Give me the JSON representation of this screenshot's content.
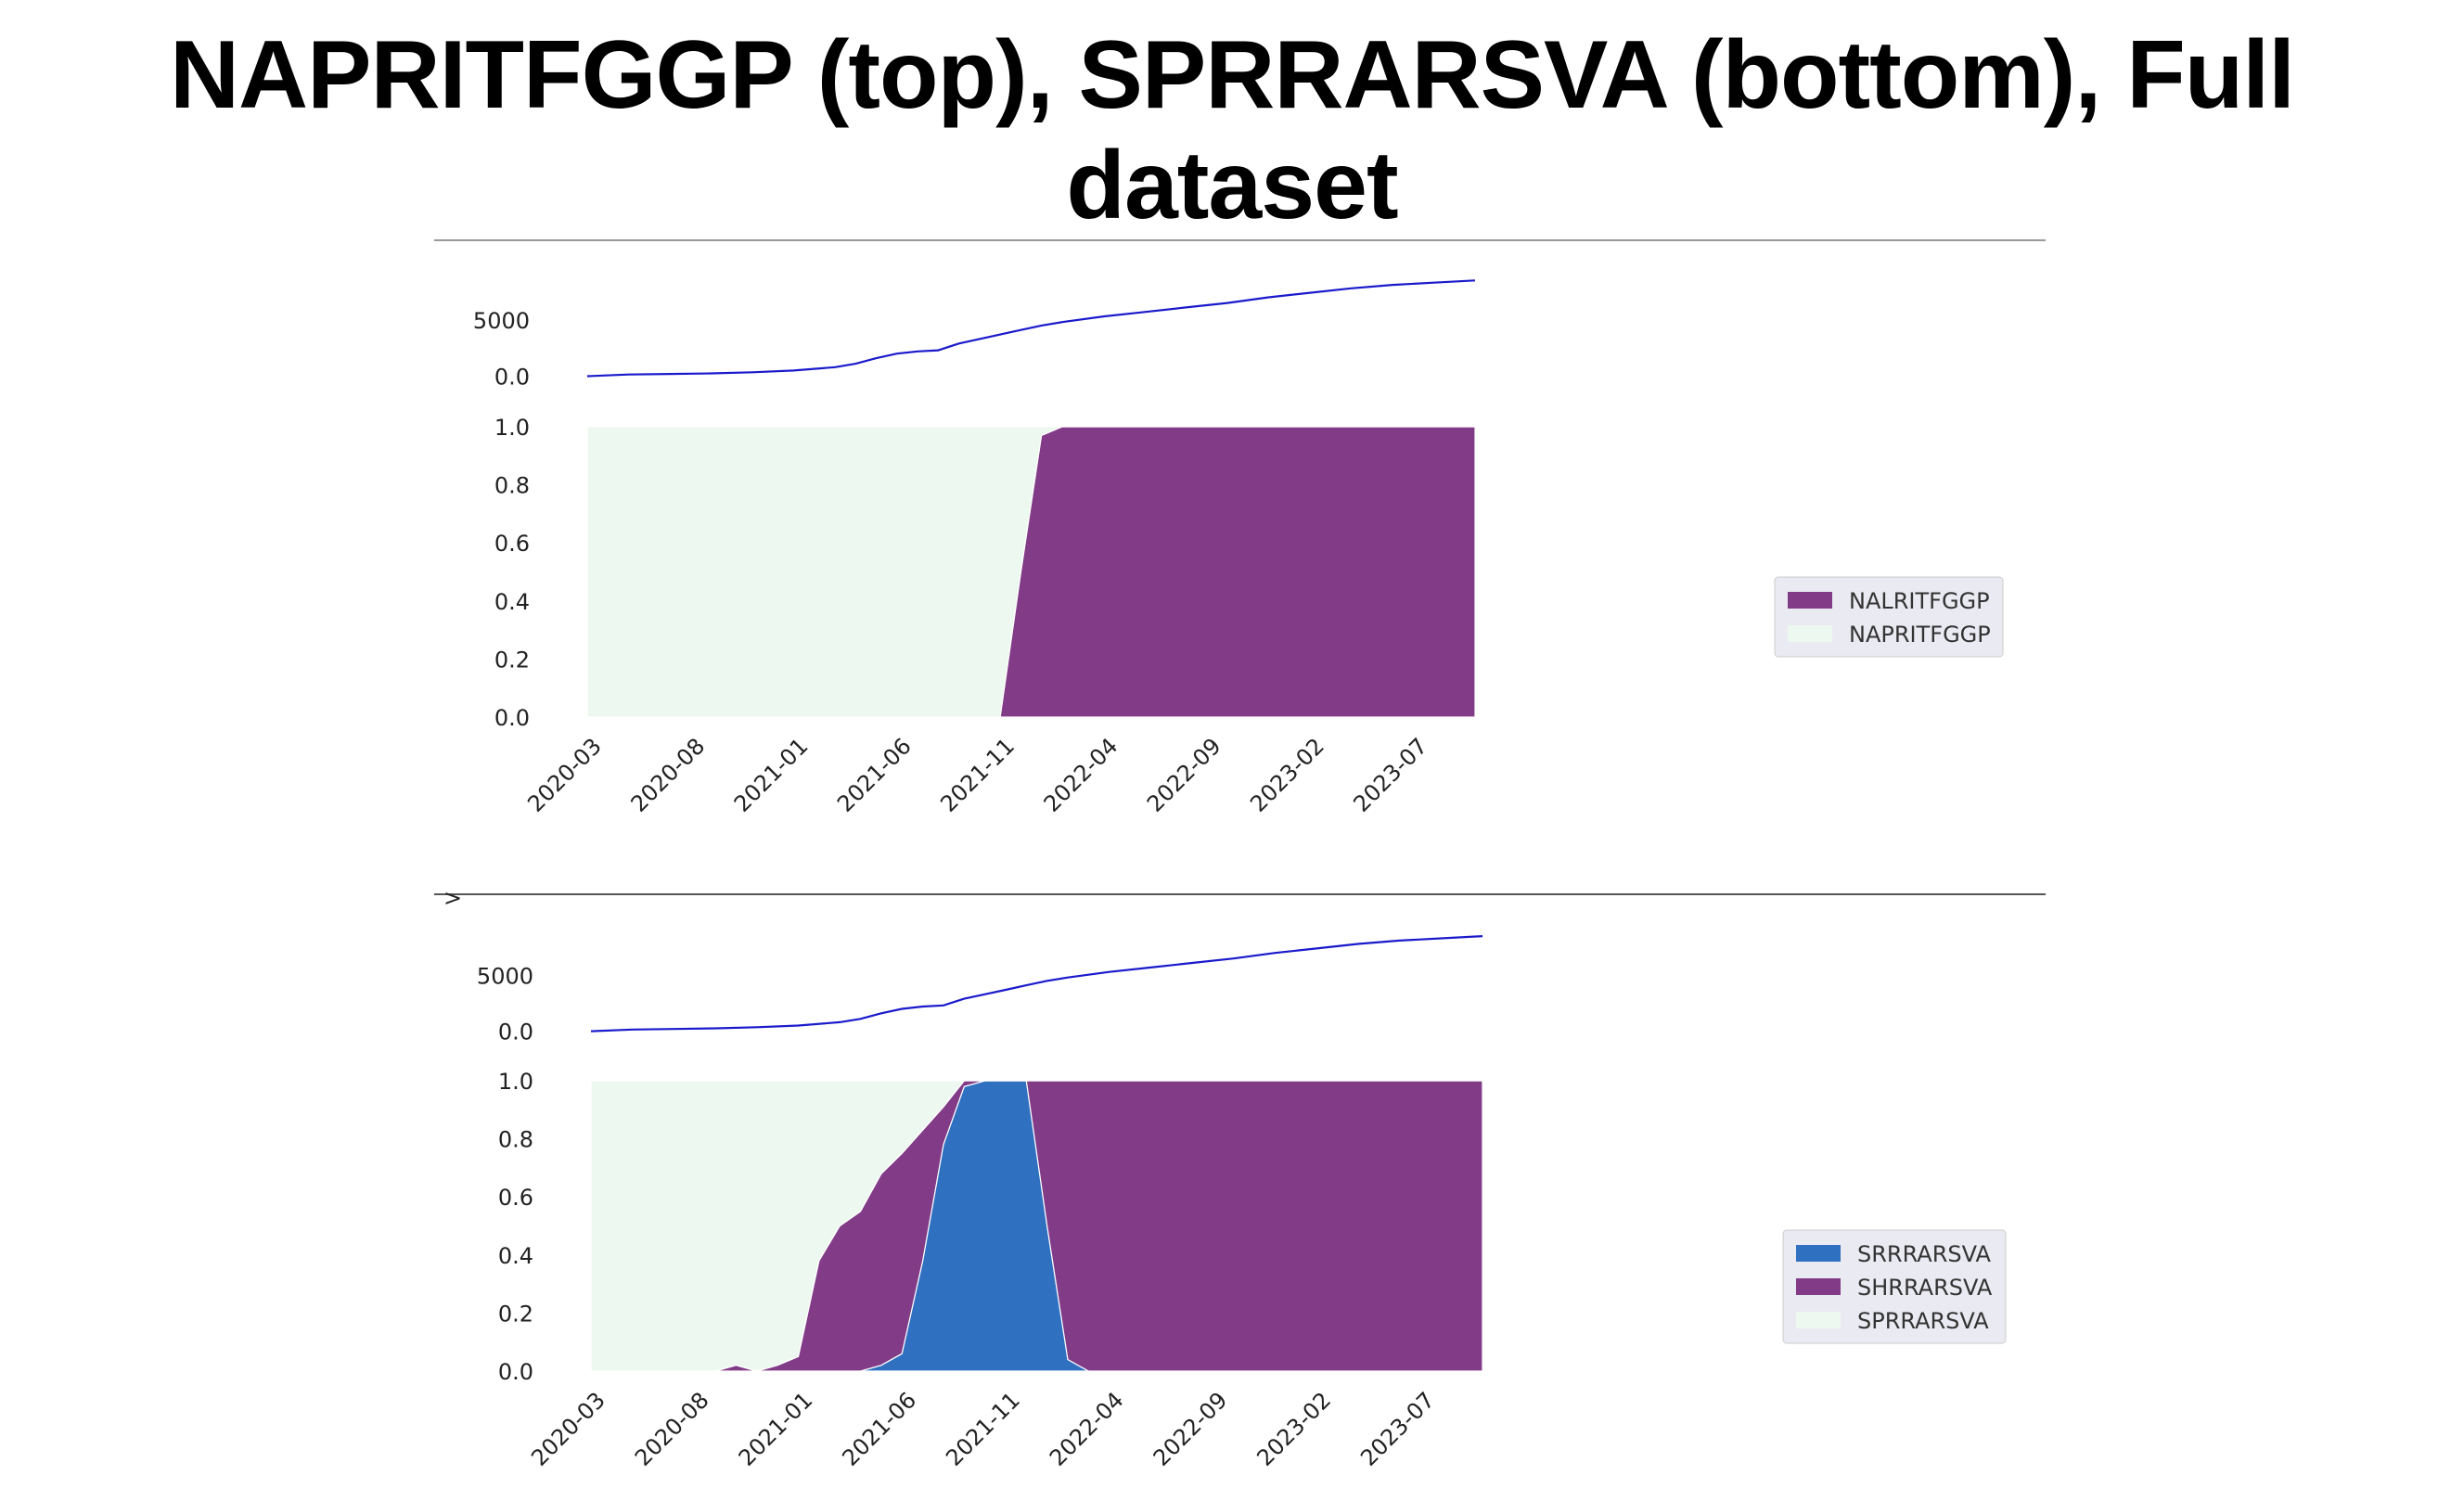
{
  "title": "NAPRITFGGP (top), SPRRARSVA (bottom), Full dataset",
  "colors": {
    "line": "#1a1acc",
    "light_green": "#edf8f0",
    "purple": "#813b87",
    "blue": "#3070c0"
  },
  "x_tick_labels": [
    "2020-03",
    "2020-08",
    "2021-01",
    "2021-06",
    "2021-11",
    "2022-04",
    "2022-09",
    "2023-02",
    "2023-07"
  ],
  "bottom_panel_marker": ">",
  "chart_data": [
    {
      "type": "line",
      "panel": "top",
      "x": [
        "2020-03",
        "2020-05",
        "2020-07",
        "2020-09",
        "2020-11",
        "2021-01",
        "2021-03",
        "2021-04",
        "2021-05",
        "2021-06",
        "2021-07",
        "2021-08",
        "2021-09",
        "2021-10",
        "2021-11",
        "2021-12",
        "2022-01",
        "2022-02",
        "2022-04",
        "2022-06",
        "2022-08",
        "2022-10",
        "2022-12",
        "2023-02",
        "2023-04",
        "2023-06",
        "2023-08",
        "2023-10"
      ],
      "values": [
        0,
        150,
        200,
        250,
        350,
        500,
        800,
        1100,
        1600,
        2000,
        2200,
        2300,
        2900,
        3300,
        3700,
        4100,
        4500,
        4800,
        5300,
        5700,
        6100,
        6500,
        7000,
        7400,
        7800,
        8100,
        8300,
        8500
      ],
      "yticks": [
        0,
        5000
      ],
      "ylim": [
        -700,
        10500
      ]
    },
    {
      "type": "area",
      "panel": "top",
      "stacked_share": true,
      "x": [
        "2020-03",
        "2020-04",
        "2020-05",
        "2020-06",
        "2020-07",
        "2020-08",
        "2020-09",
        "2020-10",
        "2020-11",
        "2020-12",
        "2021-01",
        "2021-02",
        "2021-03",
        "2021-04",
        "2021-05",
        "2021-06",
        "2021-07",
        "2021-08",
        "2021-09",
        "2021-10",
        "2021-11",
        "2021-12",
        "2022-01",
        "2022-02",
        "2022-03",
        "2022-04",
        "2022-05",
        "2022-06",
        "2022-07",
        "2022-08",
        "2022-09",
        "2022-10",
        "2022-11",
        "2022-12",
        "2023-01",
        "2023-02",
        "2023-03",
        "2023-04",
        "2023-05",
        "2023-06",
        "2023-07",
        "2023-08",
        "2023-09",
        "2023-10"
      ],
      "series": [
        {
          "name": "NALRITFGGP",
          "color": "#813b87",
          "values": [
            0,
            0,
            0,
            0,
            0,
            0,
            0,
            0,
            0,
            0,
            0,
            0,
            0,
            0,
            0,
            0,
            0,
            0,
            0,
            0,
            0,
            0.5,
            0.97,
            1,
            1,
            1,
            1,
            1,
            1,
            1,
            1,
            1,
            1,
            1,
            1,
            1,
            1,
            1,
            1,
            1,
            1,
            1,
            1,
            1
          ]
        },
        {
          "name": "NAPRITFGGP",
          "color": "#edf8f0",
          "values": [
            1,
            1,
            1,
            1,
            1,
            1,
            1,
            1,
            1,
            1,
            1,
            1,
            1,
            1,
            1,
            1,
            1,
            1,
            1,
            1,
            1,
            0.5,
            0.03,
            0,
            0,
            0,
            0,
            0,
            0,
            0,
            0,
            0,
            0,
            0,
            0,
            0,
            0,
            0,
            0,
            0,
            0,
            0,
            0,
            0
          ]
        }
      ],
      "yticks": [
        0.0,
        0.2,
        0.4,
        0.6,
        0.8,
        1.0
      ],
      "ylim": [
        0,
        1
      ],
      "legend_position": "right",
      "legend_order": [
        "NALRITFGGP",
        "NAPRITFGGP"
      ]
    },
    {
      "type": "line",
      "panel": "bottom",
      "x": [
        "2020-03",
        "2020-05",
        "2020-07",
        "2020-09",
        "2020-11",
        "2021-01",
        "2021-03",
        "2021-04",
        "2021-05",
        "2021-06",
        "2021-07",
        "2021-08",
        "2021-09",
        "2021-10",
        "2021-11",
        "2021-12",
        "2022-01",
        "2022-02",
        "2022-04",
        "2022-06",
        "2022-08",
        "2022-10",
        "2022-12",
        "2023-02",
        "2023-04",
        "2023-06",
        "2023-08",
        "2023-10"
      ],
      "values": [
        0,
        150,
        200,
        250,
        350,
        500,
        800,
        1100,
        1600,
        2000,
        2200,
        2300,
        2900,
        3300,
        3700,
        4100,
        4500,
        4800,
        5300,
        5700,
        6100,
        6500,
        7000,
        7400,
        7800,
        8100,
        8300,
        8500
      ],
      "yticks": [
        0,
        5000
      ],
      "ylim": [
        -700,
        10500
      ]
    },
    {
      "type": "area",
      "panel": "bottom",
      "stacked_share": true,
      "x": [
        "2020-03",
        "2020-04",
        "2020-05",
        "2020-06",
        "2020-07",
        "2020-08",
        "2020-09",
        "2020-10",
        "2020-11",
        "2020-12",
        "2021-01",
        "2021-02",
        "2021-03",
        "2021-04",
        "2021-05",
        "2021-06",
        "2021-07",
        "2021-08",
        "2021-09",
        "2021-10",
        "2021-11",
        "2021-12",
        "2022-01",
        "2022-02",
        "2022-03",
        "2022-04",
        "2022-05",
        "2022-06",
        "2022-07",
        "2022-08",
        "2022-09",
        "2022-10",
        "2022-11",
        "2022-12",
        "2023-01",
        "2023-02",
        "2023-03",
        "2023-04",
        "2023-05",
        "2023-06",
        "2023-07",
        "2023-08",
        "2023-09",
        "2023-10"
      ],
      "series": [
        {
          "name": "SRRRARSVA",
          "color": "#3070c0",
          "values": [
            0,
            0,
            0,
            0,
            0,
            0,
            0,
            0,
            0,
            0,
            0,
            0,
            0,
            0,
            0.02,
            0.06,
            0.38,
            0.78,
            0.98,
            1,
            1,
            1,
            0.5,
            0.04,
            0,
            0,
            0,
            0,
            0,
            0,
            0,
            0,
            0,
            0,
            0,
            0,
            0,
            0,
            0,
            0,
            0,
            0,
            0,
            0
          ]
        },
        {
          "name": "SHRRARSVA",
          "color": "#813b87",
          "values": [
            0,
            0,
            0,
            0,
            0,
            0,
            0,
            0.02,
            0,
            0.02,
            0.05,
            0.38,
            0.5,
            0.55,
            0.66,
            0.69,
            0.45,
            0.13,
            0.02,
            0,
            0,
            0,
            0.5,
            0.96,
            1,
            1,
            1,
            1,
            1,
            1,
            1,
            1,
            1,
            1,
            1,
            1,
            1,
            1,
            1,
            1,
            1,
            1,
            1,
            1
          ]
        },
        {
          "name": "SPRRARSVA",
          "color": "#edf8f0",
          "values": [
            1,
            1,
            1,
            1,
            1,
            1,
            1,
            0.98,
            1,
            0.98,
            0.95,
            0.62,
            0.5,
            0.45,
            0.32,
            0.25,
            0.17,
            0.09,
            0,
            0,
            0,
            0,
            0,
            0,
            0,
            0,
            0,
            0,
            0,
            0,
            0,
            0,
            0,
            0,
            0,
            0,
            0,
            0,
            0,
            0,
            0,
            0,
            0,
            0
          ]
        }
      ],
      "yticks": [
        0.0,
        0.2,
        0.4,
        0.6,
        0.8,
        1.0
      ],
      "ylim": [
        0,
        1
      ],
      "legend_position": "right",
      "legend_order": [
        "SRRRARSVA",
        "SHRRARSVA",
        "SPRRARSVA"
      ]
    }
  ]
}
